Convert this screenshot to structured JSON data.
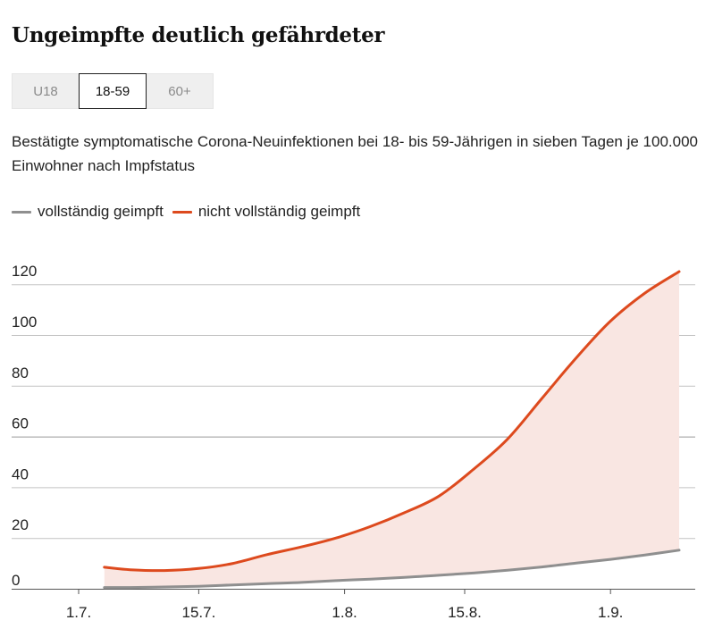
{
  "chart_data": {
    "type": "line",
    "title": "Ungeimpfte deutlich gefährdeter",
    "subtitle": "Bestätigte symptomatische Corona-Neuinfektionen bei 18- bis 59-Jährigen in sieben Tagen je 100.000 Einwohner nach Impfstatus",
    "tabs": [
      {
        "label": "U18",
        "active": false
      },
      {
        "label": "18-59",
        "active": true
      },
      {
        "label": "60+",
        "active": false
      }
    ],
    "xlabel": "",
    "ylabel": "",
    "ylim": [
      0,
      120
    ],
    "yticks": [
      0,
      20,
      40,
      60,
      80,
      100,
      120
    ],
    "xticks": [
      {
        "day": 0,
        "label": "1.7."
      },
      {
        "day": 14,
        "label": "15.7."
      },
      {
        "day": 31,
        "label": "1.8."
      },
      {
        "day": 45,
        "label": "15.8."
      },
      {
        "day": 62,
        "label": "1.9."
      }
    ],
    "x_days": [
      3,
      6,
      10,
      14,
      18,
      22,
      26,
      30,
      34,
      38,
      42,
      46,
      50,
      54,
      58,
      62,
      66,
      70
    ],
    "series": [
      {
        "name": "vollständig geimpft",
        "color": "#8f8f8f",
        "values": [
          0.5,
          0.5,
          0.7,
          1.0,
          1.5,
          2.0,
          2.5,
          3.2,
          3.8,
          4.5,
          5.3,
          6.2,
          7.3,
          8.6,
          10.1,
          11.6,
          13.3,
          15.2
        ]
      },
      {
        "name": "nicht vollständig geimpft",
        "color": "#dd4a1e",
        "values": [
          8.5,
          7.5,
          7.2,
          8.0,
          10.0,
          13.5,
          16.5,
          20.0,
          24.5,
          30.0,
          36.5,
          47.0,
          59.0,
          75.0,
          91.0,
          105.5,
          116.5,
          125.0
        ]
      }
    ],
    "fill_between_color": "#f9e6e2"
  }
}
